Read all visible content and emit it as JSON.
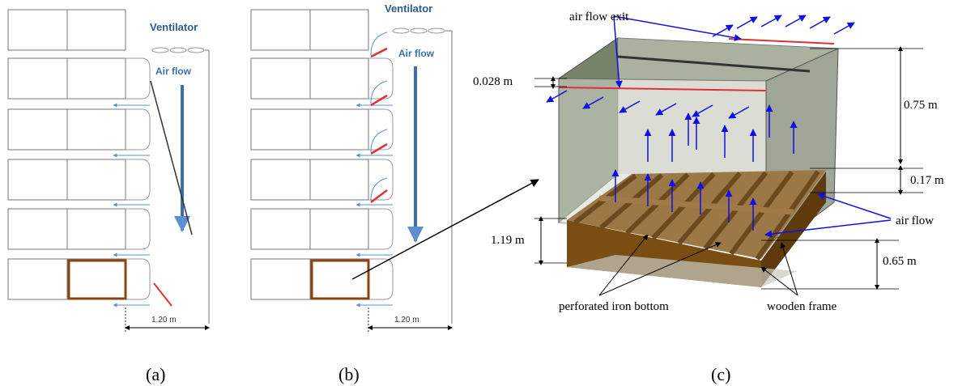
{
  "panels": [
    {
      "ventilator": "Ventilator",
      "air_flow": "Air flow",
      "width": "1.20 m",
      "caption": "(a)"
    },
    {
      "ventilator": "Ventilator",
      "air_flow": "Air flow",
      "width": "1.20 m",
      "caption": "(b)"
    },
    {
      "labels": {
        "exit": "air flow exit",
        "gap": "0.028 m",
        "height_top": "0.75 m",
        "height_mid": "0.17 m",
        "air_flow": "air flow",
        "height_left": "1.19 m",
        "height_bottom": "0.65 m",
        "bottom": "perforated iron bottom",
        "frame": "wooden frame"
      },
      "caption": "(c)"
    }
  ]
}
